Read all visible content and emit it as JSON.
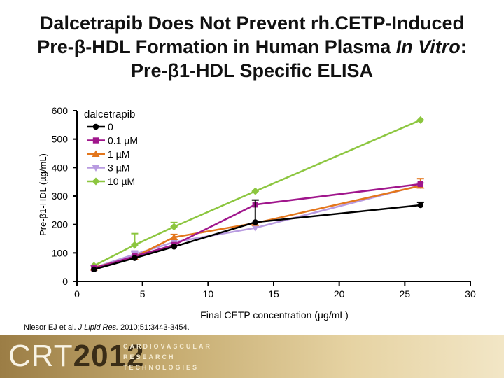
{
  "slide": {
    "title_line1": "Dalcetrapib Does Not Prevent rh.CETP-Induced",
    "title_line2_pre": "Pre-β-HDL Formation in Human Plasma ",
    "title_line2_em": "In Vitro",
    "title_line2_post": ":",
    "title_line3": "Pre-β1-HDL Specific ELISA",
    "citation_pre": "Niesor EJ et al. ",
    "citation_journal": "J Lipid Res.",
    "citation_post": " 2010;51:3443-3454."
  },
  "banner": {
    "logo_part1": "CRT",
    "logo_part2": "2012",
    "word1": "CARDIOVASCULAR",
    "word2": "RESEARCH",
    "word3": "TECHNOLOGIES"
  },
  "chart_data": {
    "type": "line",
    "title": "",
    "xlabel": "Final CETP concentration (µg/mL)",
    "ylabel": "Pre-β1-HDL (µg/mL)",
    "xlim": [
      0,
      30
    ],
    "ylim": [
      0,
      600
    ],
    "xticks": [
      0,
      5,
      10,
      15,
      20,
      25,
      30
    ],
    "yticks": [
      0,
      100,
      200,
      300,
      400,
      500,
      600
    ],
    "grid": false,
    "legend": {
      "title": "dalcetrapib",
      "placement": "top-left"
    },
    "series": [
      {
        "name": "0",
        "color": "#000000",
        "marker": "circle",
        "x": [
          1.3,
          4.4,
          7.4,
          13.6,
          26.2
        ],
        "y": [
          42,
          82,
          122,
          208,
          268
        ],
        "err": [
          0,
          0,
          0,
          78,
          10
        ]
      },
      {
        "name": "0.1 µM",
        "color": "#a0168c",
        "marker": "square",
        "x": [
          1.3,
          4.4,
          7.4,
          13.6,
          26.2
        ],
        "y": [
          46,
          88,
          128,
          270,
          342
        ],
        "err": [
          0,
          0,
          0,
          0,
          0
        ]
      },
      {
        "name": "1 µM",
        "color": "#e3761c",
        "marker": "triangle-up",
        "x": [
          1.3,
          4.4,
          7.4,
          13.6,
          26.2
        ],
        "y": [
          48,
          86,
          155,
          205,
          336
        ],
        "err": [
          0,
          0,
          10,
          0,
          25
        ]
      },
      {
        "name": "3 µM",
        "color": "#b89be0",
        "marker": "triangle-down",
        "x": [
          1.3,
          4.4,
          7.4,
          13.6,
          26.2
        ],
        "y": [
          48,
          95,
          138,
          188,
          338
        ],
        "err": [
          0,
          12,
          0,
          0,
          0
        ]
      },
      {
        "name": "10 µM",
        "color": "#8cc63f",
        "marker": "diamond",
        "x": [
          1.3,
          4.4,
          7.4,
          13.6,
          26.2
        ],
        "y": [
          55,
          128,
          192,
          317,
          567
        ],
        "err": [
          0,
          40,
          15,
          0,
          0
        ]
      }
    ]
  }
}
